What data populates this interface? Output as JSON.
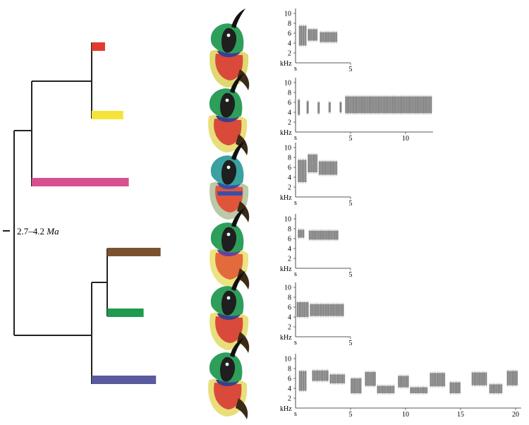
{
  "figure": {
    "node_age": {
      "range": "2.7–4.2",
      "unit": "Ma"
    }
  },
  "taxa": [
    {
      "bar_color": "#e23a2c",
      "bar_width_rel": 0.11,
      "bird": {
        "head": "#2e9e5b",
        "throat": "#3b3f8f",
        "breast": "#d94a3a",
        "belly": "#e0d870",
        "band": false
      }
    },
    {
      "bar_color": "#f5e33c",
      "bar_width_rel": 0.26,
      "bird": {
        "head": "#2e9e5b",
        "throat": "#3b3f8f",
        "breast": "#d94a3a",
        "belly": "#e8df7a",
        "band": false
      }
    },
    {
      "bar_color": "#d9508f",
      "bar_width_rel": 0.8,
      "bird": {
        "head": "#3aa0a0",
        "throat": "#3b4fa8",
        "breast": "#e0543c",
        "belly": "#bcc9a8",
        "band": true
      }
    },
    {
      "bar_color": "#7a5230",
      "bar_width_rel": 0.44,
      "bird": {
        "head": "#2e9e5b",
        "throat": "#6b3fa0",
        "breast": "#e36a3a",
        "belly": "#ece482",
        "band": false
      }
    },
    {
      "bar_color": "#1f9a4f",
      "bar_width_rel": 0.3,
      "bird": {
        "head": "#2e9e5b",
        "throat": "#3b3f8f",
        "breast": "#d94a3a",
        "belly": "#e8df7a",
        "band": false
      }
    },
    {
      "bar_color": "#5a5a9e",
      "bar_width_rel": 0.53,
      "bird": {
        "head": "#2e9e5b",
        "throat": "#3b3f8f",
        "breast": "#d94a3a",
        "belly": "#e8df7a",
        "band": false
      }
    }
  ],
  "spectrograms": {
    "y_axis_label": "kHz",
    "x_origin_label": "s",
    "y_ticks": [
      "10",
      "8",
      "6",
      "4",
      "2"
    ],
    "panels": [
      {
        "duration_s": 5,
        "x_ticks": [
          "5"
        ],
        "segments": [
          [
            0.3,
            1.0,
            3.5,
            7.5
          ],
          [
            1.1,
            2.0,
            4.5,
            6.8
          ],
          [
            2.2,
            3.8,
            4.2,
            6.2
          ]
        ]
      },
      {
        "duration_s": 12.5,
        "x_ticks": [
          "5",
          "10"
        ],
        "segments": [
          [
            0.2,
            0.4,
            3.5,
            6.5
          ],
          [
            1.0,
            1.2,
            3.8,
            6.2
          ],
          [
            2.0,
            2.2,
            3.8,
            6.0
          ],
          [
            3.0,
            3.2,
            4.0,
            6.0
          ],
          [
            4.0,
            4.2,
            4.0,
            6.0
          ],
          [
            4.5,
            12.4,
            3.8,
            7.2
          ]
        ]
      },
      {
        "duration_s": 5,
        "x_ticks": [
          "5"
        ],
        "segments": [
          [
            0.2,
            1.0,
            3.0,
            7.5
          ],
          [
            1.1,
            2.0,
            5.0,
            8.6
          ],
          [
            2.1,
            3.8,
            4.5,
            7.2
          ]
        ]
      },
      {
        "duration_s": 5,
        "x_ticks": [
          "5"
        ],
        "segments": [
          [
            0.2,
            0.8,
            6.2,
            7.8
          ],
          [
            1.2,
            3.9,
            5.8,
            7.6
          ]
        ]
      },
      {
        "duration_s": 5,
        "x_ticks": [
          "5"
        ],
        "segments": [
          [
            0.1,
            1.2,
            4.0,
            7.0
          ],
          [
            1.3,
            4.4,
            4.2,
            6.6
          ]
        ]
      },
      {
        "duration_s": 20.5,
        "x_ticks": [
          "5",
          "10",
          "15",
          "20"
        ],
        "segments": [
          [
            0.3,
            1.0,
            3.5,
            7.5
          ],
          [
            1.5,
            3.0,
            5.5,
            7.6
          ],
          [
            3.1,
            4.5,
            5.0,
            6.8
          ],
          [
            5.0,
            6.0,
            3.0,
            6.0
          ],
          [
            6.3,
            7.3,
            4.5,
            7.3
          ],
          [
            7.4,
            9.0,
            3.0,
            4.5
          ],
          [
            9.3,
            10.3,
            4.2,
            6.5
          ],
          [
            10.4,
            12.0,
            3.0,
            4.2
          ],
          [
            12.2,
            13.6,
            4.4,
            7.1
          ],
          [
            14.0,
            15.0,
            3.0,
            5.2
          ],
          [
            16.0,
            17.4,
            4.6,
            7.2
          ],
          [
            17.6,
            18.8,
            3.0,
            4.8
          ],
          [
            19.2,
            20.2,
            4.6,
            7.5
          ]
        ]
      }
    ]
  }
}
